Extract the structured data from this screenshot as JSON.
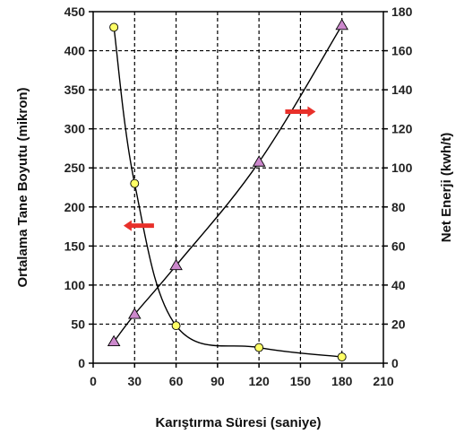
{
  "chart_data": {
    "type": "line",
    "title": "",
    "xlabel": "Karıştırma Süresi (saniye)",
    "ylabel_left": "Ortalama Tane Boyutu (mikron)",
    "ylabel_right": "Net Enerji (kwh/t)",
    "xlim": [
      0,
      210
    ],
    "xticks": [
      0,
      30,
      60,
      90,
      120,
      150,
      180,
      210
    ],
    "ylim_left": [
      0,
      450
    ],
    "yticks_left": [
      0,
      50,
      100,
      150,
      200,
      250,
      300,
      350,
      400,
      450
    ],
    "ylim_right": [
      0,
      180
    ],
    "yticks_right": [
      0,
      20,
      40,
      60,
      80,
      100,
      120,
      140,
      160,
      180
    ],
    "grid": true,
    "series": [
      {
        "axis": "left",
        "marker": "circle",
        "marker_color": "#ffff66",
        "x": [
          15,
          30,
          60,
          120,
          180
        ],
        "y": [
          430,
          230,
          48,
          20,
          8
        ]
      },
      {
        "axis": "right",
        "marker": "triangle",
        "marker_color": "#cc88cc",
        "x": [
          15,
          30,
          60,
          120,
          180
        ],
        "y": [
          11,
          25,
          50,
          103,
          173
        ]
      }
    ],
    "annotations": [
      {
        "type": "arrow",
        "direction": "left",
        "color": "#e8302a",
        "points_to": "left-axis"
      },
      {
        "type": "arrow",
        "direction": "right",
        "color": "#e8302a",
        "points_to": "right-axis"
      }
    ]
  }
}
